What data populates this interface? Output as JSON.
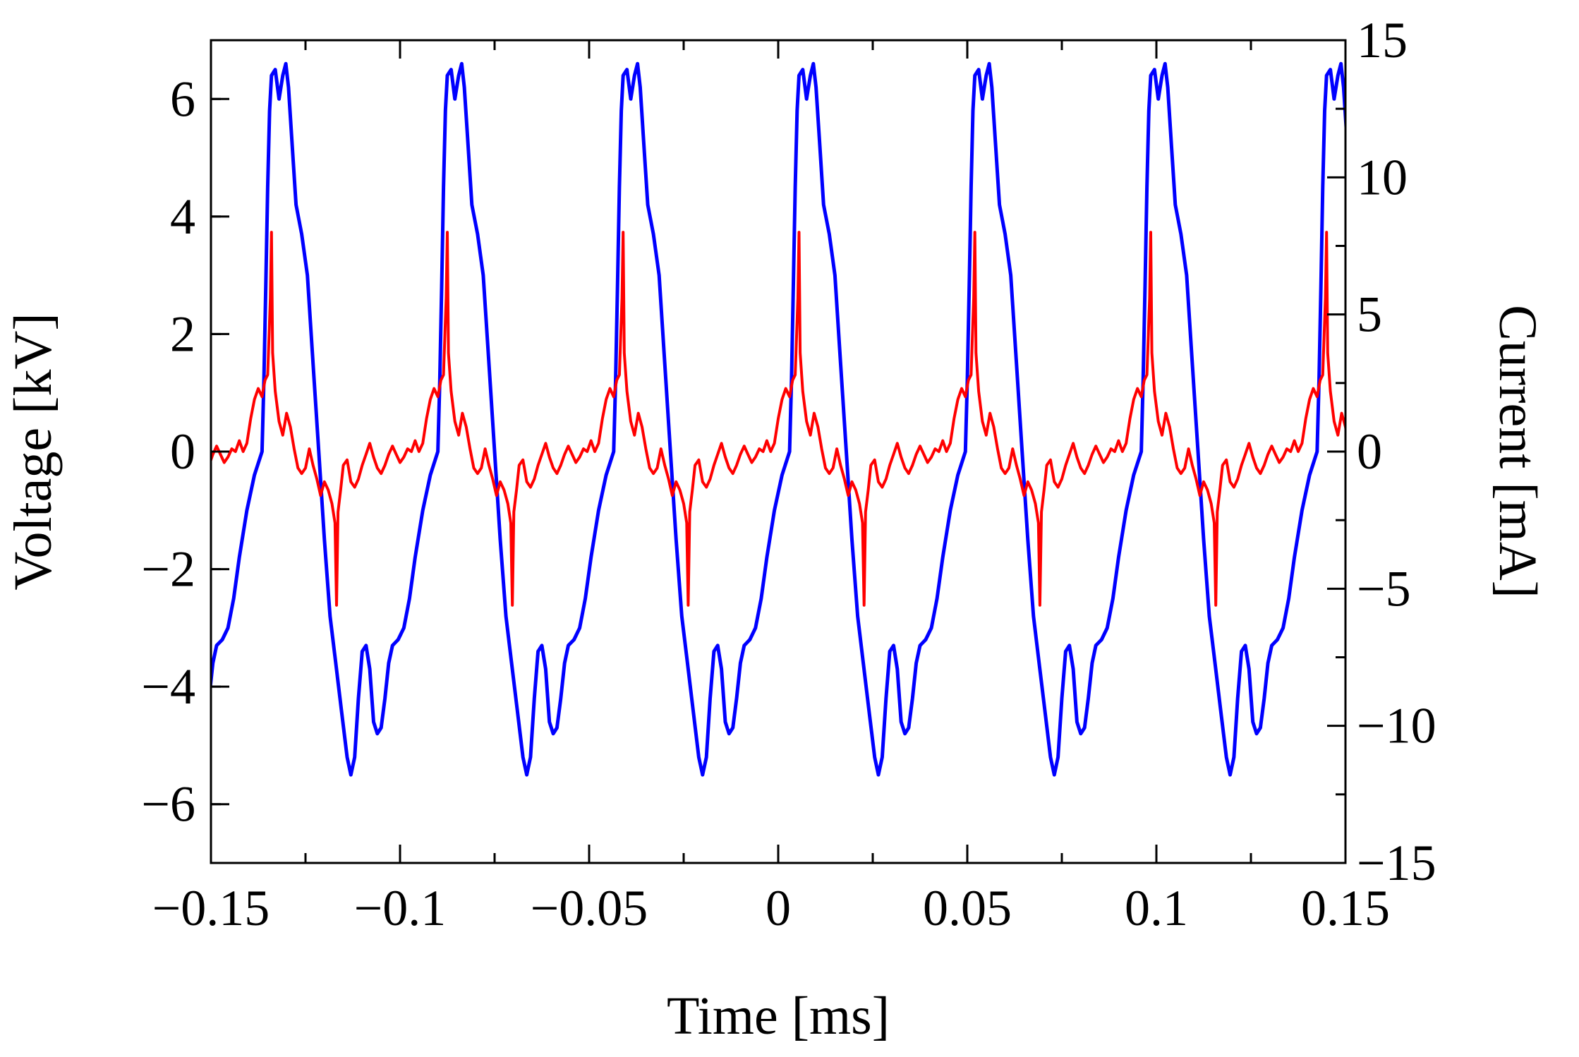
{
  "chart_data": {
    "type": "line",
    "xlabel": "Time [ms]",
    "ylabel_left": "Voltage [kV]",
    "ylabel_right": "Current [mA]",
    "xlim": [
      -0.15,
      0.15
    ],
    "ylim_left": [
      -7,
      7
    ],
    "ylim_right": [
      -15,
      15
    ],
    "x_ticks": [
      -0.15,
      -0.1,
      -0.05,
      0,
      0.05,
      0.1,
      0.15
    ],
    "x_tick_labels": [
      "−0.15",
      "−0.1",
      "−0.05",
      "0",
      "0.05",
      "0.1",
      "0.15"
    ],
    "y_left_ticks": [
      -6,
      -4,
      -2,
      0,
      2,
      4,
      6
    ],
    "y_left_tick_labels": [
      "−6",
      "−4",
      "−2",
      "0",
      "2",
      "4",
      "6"
    ],
    "y_right_ticks": [
      -15,
      -10,
      -5,
      0,
      5,
      10,
      15
    ],
    "y_right_tick_labels": [
      "−15",
      "−10",
      "−5",
      "0",
      "5",
      "10",
      "15"
    ],
    "grid": false,
    "legend": "none",
    "series": [
      {
        "name": "Voltage",
        "axis": "left",
        "color": "#0000ff",
        "period_ms": 0.0465,
        "x_start": -0.1365,
        "cycle_shape": [
          [
            0,
            0
          ],
          [
            0.0005,
            1.2
          ],
          [
            0.001,
            2.8
          ],
          [
            0.0015,
            4.5
          ],
          [
            0.002,
            5.8
          ],
          [
            0.0025,
            6.4
          ],
          [
            0.0035,
            6.5
          ],
          [
            0.0045,
            6.0
          ],
          [
            0.0055,
            6.4
          ],
          [
            0.0063,
            6.6
          ],
          [
            0.007,
            6.2
          ],
          [
            0.008,
            5.2
          ],
          [
            0.009,
            4.2
          ],
          [
            0.0105,
            3.7
          ],
          [
            0.012,
            3.0
          ],
          [
            0.0135,
            1.5
          ],
          [
            0.015,
            0.0
          ],
          [
            0.0165,
            -1.5
          ],
          [
            0.018,
            -2.8
          ],
          [
            0.0195,
            -3.6
          ],
          [
            0.021,
            -4.4
          ],
          [
            0.0225,
            -5.2
          ],
          [
            0.0235,
            -5.5
          ],
          [
            0.0245,
            -5.2
          ],
          [
            0.0255,
            -4.2
          ],
          [
            0.0265,
            -3.4
          ],
          [
            0.0275,
            -3.3
          ],
          [
            0.0285,
            -3.7
          ],
          [
            0.0295,
            -4.6
          ],
          [
            0.0305,
            -4.8
          ],
          [
            0.0315,
            -4.7
          ],
          [
            0.0325,
            -4.2
          ],
          [
            0.0335,
            -3.6
          ],
          [
            0.0345,
            -3.3
          ],
          [
            0.036,
            -3.2
          ],
          [
            0.0375,
            -3.0
          ],
          [
            0.039,
            -2.5
          ],
          [
            0.0405,
            -1.8
          ],
          [
            0.0425,
            -1.0
          ],
          [
            0.0445,
            -0.4
          ],
          [
            0.0465,
            0
          ]
        ]
      },
      {
        "name": "Current",
        "axis": "right",
        "color": "#ff0000",
        "period_ms": 0.0465,
        "x_start": -0.1365,
        "cycle_shape": [
          [
            -0.006,
            0.4
          ],
          [
            -0.005,
            0.0
          ],
          [
            -0.004,
            0.3
          ],
          [
            -0.003,
            1.2
          ],
          [
            -0.002,
            1.9
          ],
          [
            -0.001,
            2.3
          ],
          [
            0,
            2.0
          ],
          [
            0.0008,
            2.6
          ],
          [
            0.0015,
            2.8
          ],
          [
            0.0022,
            5.6
          ],
          [
            0.0025,
            8.0
          ],
          [
            0.0028,
            3.6
          ],
          [
            0.0035,
            2.2
          ],
          [
            0.0045,
            1.1
          ],
          [
            0.0055,
            0.6
          ],
          [
            0.0065,
            1.4
          ],
          [
            0.0075,
            0.9
          ],
          [
            0.0085,
            0.1
          ],
          [
            0.0095,
            -0.6
          ],
          [
            0.0105,
            -0.8
          ],
          [
            0.0115,
            -0.6
          ],
          [
            0.0125,
            0.1
          ],
          [
            0.0135,
            -0.5
          ],
          [
            0.0145,
            -1.0
          ],
          [
            0.0155,
            -1.6
          ],
          [
            0.0165,
            -1.1
          ],
          [
            0.0175,
            -1.4
          ],
          [
            0.0185,
            -1.9
          ],
          [
            0.0193,
            -2.6
          ],
          [
            0.0197,
            -5.6
          ],
          [
            0.0201,
            -2.2
          ],
          [
            0.0208,
            -1.4
          ],
          [
            0.0215,
            -0.5
          ],
          [
            0.0225,
            -0.3
          ],
          [
            0.0235,
            -1.1
          ],
          [
            0.0245,
            -1.3
          ],
          [
            0.0255,
            -1.0
          ],
          [
            0.0265,
            -0.5
          ],
          [
            0.0275,
            -0.1
          ],
          [
            0.0285,
            0.3
          ],
          [
            0.0295,
            -0.2
          ],
          [
            0.0305,
            -0.6
          ],
          [
            0.0315,
            -0.8
          ],
          [
            0.0325,
            -0.5
          ],
          [
            0.0335,
            -0.1
          ],
          [
            0.0345,
            0.2
          ],
          [
            0.0355,
            -0.1
          ],
          [
            0.0365,
            -0.4
          ],
          [
            0.0375,
            -0.2
          ],
          [
            0.0385,
            0.1
          ],
          [
            0.0395,
            0.0
          ],
          [
            0.0405,
            0.4
          ]
        ]
      }
    ]
  }
}
